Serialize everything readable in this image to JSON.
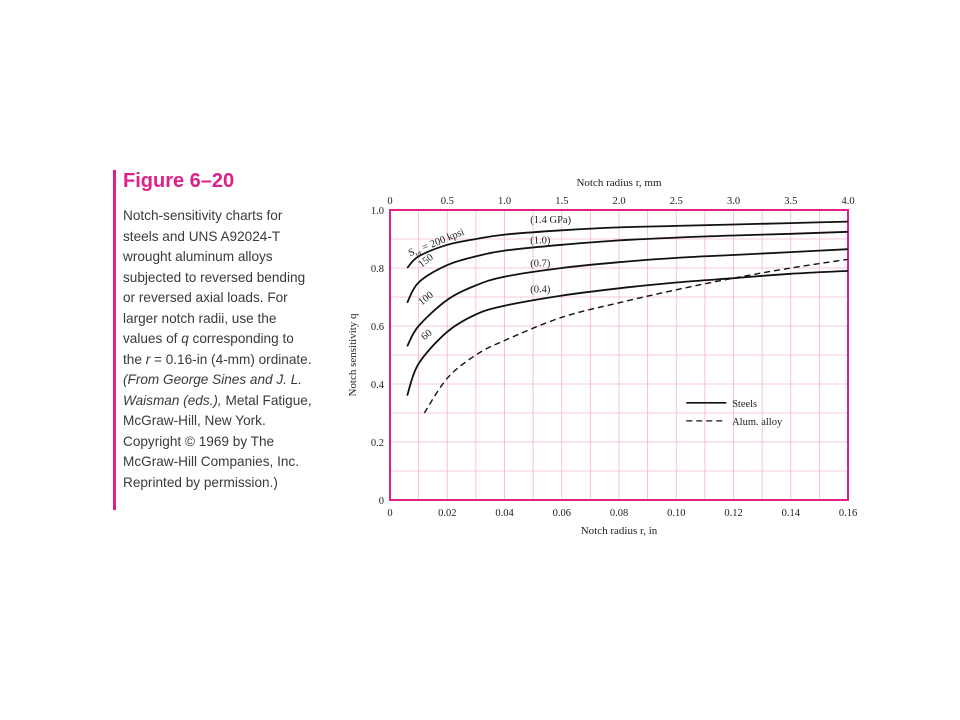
{
  "figure": {
    "title": "Figure 6–20",
    "caption": {
      "p1": "Notch-sensitivity charts for steels and UNS A92024-T wrought aluminum alloys subjected to reversed bending or reversed axial loads. For larger notch radii, use the values of ",
      "q": "q",
      "p2": " corresponding to the ",
      "r": "r",
      "p3": " = 0.16-in (4-mm) ordinate. ",
      "source_italic": "(From George Sines and J. L. Waisman (eds.),",
      "p4": " Metal Fatigue, McGraw-Hill, New York. Copyright © 1969 by The McGraw-Hill Companies, Inc. Reprinted by permission.)"
    }
  },
  "colors": {
    "accent": "#e0208a",
    "grid": "#f2b6d6",
    "frame": "#e0208a",
    "curve": "#111111"
  },
  "chart_data": {
    "type": "line",
    "xlabel": "Notch radius r, in",
    "x2label": "Notch radius r, mm",
    "ylabel": "Notch sensitivity q",
    "xlim": [
      0,
      0.16
    ],
    "x2lim": [
      0,
      4.0
    ],
    "ylim": [
      0,
      1.0
    ],
    "xticks": [
      "0",
      "0.02",
      "0.04",
      "0.06",
      "0.08",
      "0.10",
      "0.12",
      "0.14",
      "0.16"
    ],
    "x2ticks": [
      "0",
      "0.5",
      "1.0",
      "1.5",
      "2.0",
      "2.5",
      "3.0",
      "3.5",
      "4.0"
    ],
    "yticks": [
      "0",
      "0.2",
      "0.4",
      "0.6",
      "0.8",
      "1.0"
    ],
    "grid": true,
    "series": [
      {
        "name": "200 kpsi",
        "label": "200 kpsi",
        "gpa_label": "(1.4 GPa)",
        "style": "solid",
        "x": [
          0.006,
          0.01,
          0.02,
          0.03,
          0.04,
          0.06,
          0.08,
          0.1,
          0.12,
          0.14,
          0.16
        ],
        "y": [
          0.8,
          0.84,
          0.88,
          0.9,
          0.915,
          0.93,
          0.94,
          0.945,
          0.95,
          0.955,
          0.96
        ]
      },
      {
        "name": "150",
        "label": "150",
        "gpa_label": "(1.0)",
        "style": "solid",
        "x": [
          0.006,
          0.01,
          0.02,
          0.03,
          0.04,
          0.06,
          0.08,
          0.1,
          0.12,
          0.14,
          0.16
        ],
        "y": [
          0.68,
          0.75,
          0.81,
          0.84,
          0.86,
          0.88,
          0.895,
          0.905,
          0.912,
          0.918,
          0.925
        ]
      },
      {
        "name": "100",
        "label": "100",
        "gpa_label": "(0.7)",
        "style": "solid",
        "x": [
          0.006,
          0.01,
          0.02,
          0.03,
          0.04,
          0.06,
          0.08,
          0.1,
          0.12,
          0.14,
          0.16
        ],
        "y": [
          0.53,
          0.6,
          0.69,
          0.74,
          0.77,
          0.8,
          0.82,
          0.835,
          0.845,
          0.855,
          0.865
        ]
      },
      {
        "name": "60",
        "label": "60",
        "gpa_label": "(0.4)",
        "style": "solid",
        "x": [
          0.006,
          0.01,
          0.02,
          0.03,
          0.04,
          0.06,
          0.08,
          0.1,
          0.12,
          0.14,
          0.16
        ],
        "y": [
          0.36,
          0.47,
          0.58,
          0.64,
          0.67,
          0.705,
          0.73,
          0.75,
          0.765,
          0.78,
          0.79
        ]
      },
      {
        "name": "Alum. alloy",
        "label": "Alum. alloy",
        "style": "dashed",
        "x": [
          0.012,
          0.02,
          0.03,
          0.04,
          0.06,
          0.08,
          0.1,
          0.12,
          0.14,
          0.16
        ],
        "y": [
          0.3,
          0.42,
          0.5,
          0.55,
          0.63,
          0.68,
          0.725,
          0.765,
          0.8,
          0.83
        ]
      }
    ],
    "annotation_sut": "S",
    "annotation_sut_sub": "ut",
    "annotation_sut_rest": " = 200 kpsi",
    "legend": {
      "position": "right",
      "entries": [
        {
          "label": "Steels",
          "style": "solid"
        },
        {
          "label": "Alum. alloy",
          "style": "dashed"
        }
      ]
    }
  }
}
